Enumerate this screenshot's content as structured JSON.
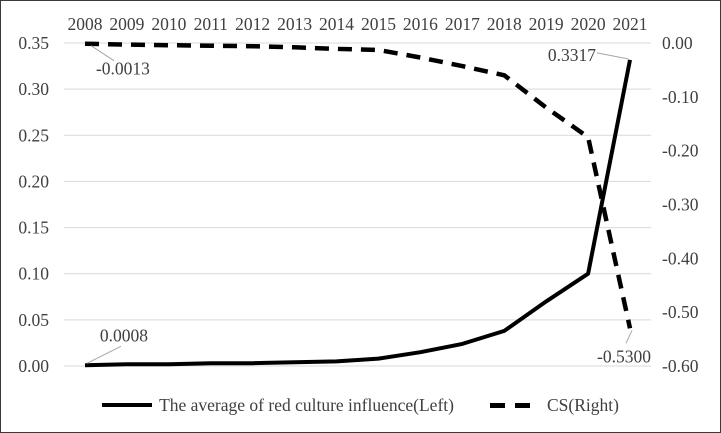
{
  "chart_data": {
    "type": "line",
    "title": "",
    "x_axis_position": "top",
    "grid": "horizontal",
    "categories": [
      "2008",
      "2009",
      "2010",
      "2011",
      "2012",
      "2013",
      "2014",
      "2015",
      "2016",
      "2017",
      "2018",
      "2019",
      "2020",
      "2021"
    ],
    "series": [
      {
        "name": "The average of red culture influence(Left)",
        "axis": "left",
        "line_style": "solid",
        "color": "#000000",
        "values": [
          0.0008,
          0.002,
          0.002,
          0.003,
          0.003,
          0.004,
          0.005,
          0.008,
          0.015,
          0.024,
          0.038,
          0.07,
          0.1,
          0.3317
        ]
      },
      {
        "name": "CS(Right)",
        "axis": "right",
        "line_style": "dashed",
        "color": "#000000",
        "values": [
          -0.0013,
          -0.003,
          -0.004,
          -0.005,
          -0.006,
          -0.008,
          -0.011,
          -0.013,
          -0.027,
          -0.043,
          -0.06,
          -0.12,
          -0.175,
          -0.53
        ]
      }
    ],
    "left_axis": {
      "min": 0,
      "max": 0.35,
      "step": 0.05,
      "ticks": [
        "0.35",
        "0.30",
        "0.25",
        "0.20",
        "0.15",
        "0.10",
        "0.05",
        "0.00"
      ]
    },
    "right_axis": {
      "min": -0.6,
      "max": 0,
      "step": 0.1,
      "ticks": [
        "0.00",
        "-0.10",
        "-0.20",
        "-0.30",
        "-0.40",
        "-0.50",
        "-0.60"
      ]
    },
    "annotations": [
      {
        "series_index": 1,
        "point_index": 0,
        "text": "-0.0013"
      },
      {
        "series_index": 0,
        "point_index": 13,
        "text": "0.3317"
      },
      {
        "series_index": 0,
        "point_index": 0,
        "text": "0.0008"
      },
      {
        "series_index": 1,
        "point_index": 13,
        "text": "-0.5300"
      }
    ],
    "legend": {
      "position": "bottom",
      "entries": [
        "The average of red culture influence(Left)",
        "CS(Right)"
      ]
    }
  },
  "colors": {
    "line": "#000000",
    "grid": "#d9d9d9",
    "text": "#404040",
    "leader": "#a6a6a6",
    "background": "#ffffff",
    "border": "#3a3a3a"
  }
}
